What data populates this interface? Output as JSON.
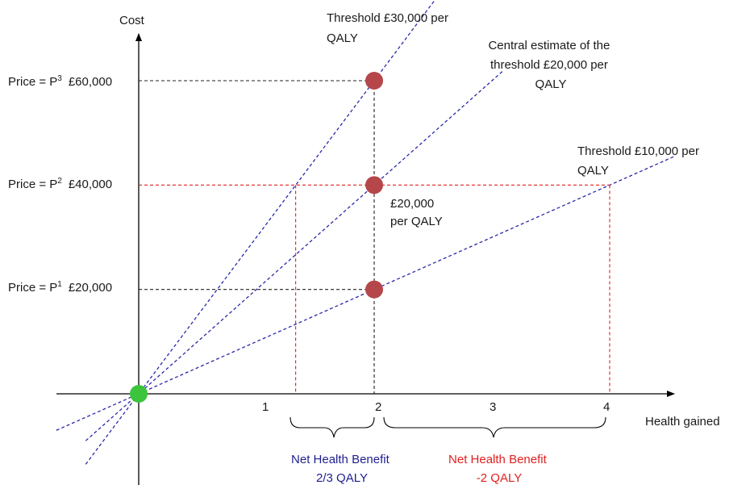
{
  "chart_data": {
    "type": "line",
    "axes": {
      "x_label": "Health gained",
      "y_label": "Cost"
    },
    "x_ticks": [
      "1",
      "2",
      "3",
      "4"
    ],
    "y_range": [
      0,
      60000
    ],
    "x_range": [
      0,
      4
    ],
    "thresholds": [
      {
        "name": "Threshold  £30,000 per QALY",
        "label_lines": [
          "Threshold  £30,000 per",
          "QALY"
        ],
        "slope": 30000,
        "color": "#2a2aa8"
      },
      {
        "name": "Central estimate  of the threshold  £20,000 per QALY",
        "label_lines": [
          "Central estimate  of the",
          "threshold  £20,000 per",
          "QALY"
        ],
        "slope": 20000,
        "color": "#2a2aa8"
      },
      {
        "name": "Threshold  £10,000 per QALY",
        "label_lines": [
          "Threshold  £10,000 per",
          "QALY"
        ],
        "slope": 10000,
        "color": "#2a2aa8"
      }
    ],
    "price_levels": [
      {
        "label": "Price = P",
        "sup": "1",
        "value_label": "£20,000",
        "value": 20000,
        "line_color": "#222222"
      },
      {
        "label": "Price = P",
        "sup": "2",
        "value_label": "£40,000",
        "value": 40000,
        "line_color": "#e02020"
      },
      {
        "label": "Price = P",
        "sup": "3",
        "value_label": "£60,000",
        "value": 60000,
        "line_color": "#222222"
      }
    ],
    "points": [
      {
        "x": 2,
        "y": 20000,
        "color": "#b5474a"
      },
      {
        "x": 2,
        "y": 40000,
        "color": "#b5474a"
      },
      {
        "x": 2,
        "y": 60000,
        "color": "#b5474a"
      },
      {
        "x": 0,
        "y": 0,
        "color": "#3cc43c"
      }
    ],
    "point_annotation": [
      "£20,000",
      "per QALY"
    ],
    "net_benefits": [
      {
        "lines": [
          "Net Health  Benefit",
          "2/3 QALY"
        ],
        "from_x": 1.333,
        "to_x": 2,
        "color": "#1f1f8f"
      },
      {
        "lines": [
          "Net Health  Benefit",
          "-2 QALY"
        ],
        "from_x": 2,
        "to_x": 4,
        "color": "#e02020"
      }
    ]
  }
}
